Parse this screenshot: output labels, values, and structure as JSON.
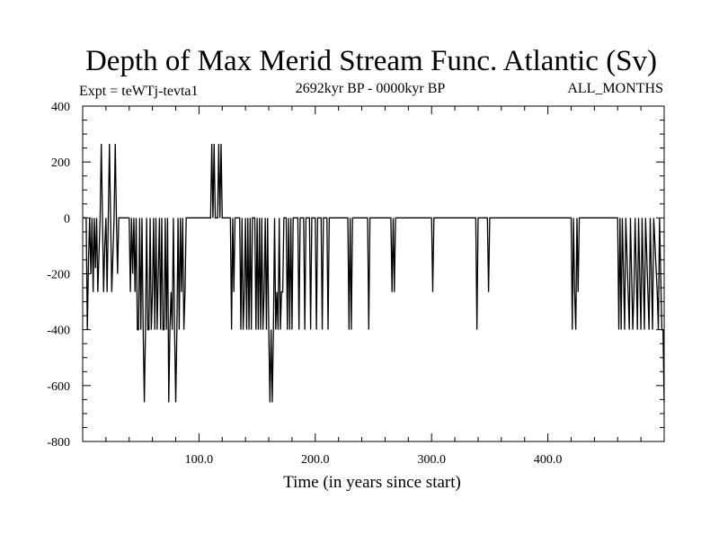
{
  "chart_data": {
    "type": "line",
    "title": "Depth of Max Merid Stream Func. Atlantic (Sv)",
    "subtitle_left": "Expt = teWTj-tevta1",
    "subtitle_center": "2692kyr BP - 0000kyr BP",
    "subtitle_right": "ALL_MONTHS",
    "xlabel": "Time (in years since start)",
    "ylabel": "",
    "xlim": [
      0,
      500
    ],
    "ylim": [
      -800,
      400
    ],
    "x_ticks": [
      100,
      200,
      300,
      400
    ],
    "x_tick_labels": [
      "100.0",
      "200.0",
      "300.0",
      "400.0"
    ],
    "y_ticks": [
      400,
      200,
      0,
      -200,
      -400,
      -600,
      -800
    ],
    "y_tick_labels": [
      "400",
      "200",
      "0",
      "-200",
      "-400",
      "-600",
      "-800"
    ],
    "grid": false,
    "legend": "none",
    "color": "#000000",
    "series": [
      {
        "points": [
          [
            0,
            0
          ],
          [
            3,
            0
          ],
          [
            4,
            -400
          ],
          [
            5,
            -150
          ],
          [
            6,
            0
          ],
          [
            7,
            -200
          ],
          [
            8,
            0
          ],
          [
            9,
            -265
          ],
          [
            10,
            0
          ],
          [
            11,
            -180
          ],
          [
            12,
            0
          ],
          [
            13,
            -265
          ],
          [
            14,
            -130
          ],
          [
            15,
            0
          ],
          [
            16,
            265
          ],
          [
            17,
            0
          ],
          [
            18,
            -265
          ],
          [
            19,
            -100
          ],
          [
            20,
            0
          ],
          [
            21,
            -265
          ],
          [
            22,
            0
          ],
          [
            23,
            265
          ],
          [
            24,
            0
          ],
          [
            25,
            -265
          ],
          [
            26,
            -130
          ],
          [
            27,
            0
          ],
          [
            28,
            265
          ],
          [
            29,
            0
          ],
          [
            30,
            -200
          ],
          [
            31,
            0
          ],
          [
            33,
            0
          ],
          [
            40,
            0
          ],
          [
            41,
            -265
          ],
          [
            42,
            0
          ],
          [
            43,
            -200
          ],
          [
            44,
            0
          ],
          [
            45,
            -265
          ],
          [
            46,
            0
          ],
          [
            47,
            -400
          ],
          [
            48,
            -400
          ],
          [
            49,
            0
          ],
          [
            50,
            -400
          ],
          [
            51,
            0
          ],
          [
            52,
            -400
          ],
          [
            53,
            -660
          ],
          [
            54,
            -400
          ],
          [
            55,
            0
          ],
          [
            56,
            -400
          ],
          [
            57,
            -400
          ],
          [
            58,
            0
          ],
          [
            59,
            -400
          ],
          [
            60,
            -265
          ],
          [
            61,
            0
          ],
          [
            62,
            -400
          ],
          [
            63,
            0
          ],
          [
            64,
            -400
          ],
          [
            65,
            -200
          ],
          [
            66,
            0
          ],
          [
            67,
            -400
          ],
          [
            68,
            0
          ],
          [
            69,
            -400
          ],
          [
            70,
            -400
          ],
          [
            71,
            0
          ],
          [
            72,
            -400
          ],
          [
            73,
            0
          ],
          [
            74,
            -660
          ],
          [
            75,
            -400
          ],
          [
            76,
            -265
          ],
          [
            77,
            -400
          ],
          [
            78,
            0
          ],
          [
            79,
            -400
          ],
          [
            80,
            -660
          ],
          [
            81,
            -400
          ],
          [
            82,
            0
          ],
          [
            83,
            -400
          ],
          [
            84,
            0
          ],
          [
            85,
            -265
          ],
          [
            86,
            0
          ],
          [
            87,
            -400
          ],
          [
            88,
            -265
          ],
          [
            89,
            0
          ],
          [
            90,
            0
          ],
          [
            110,
            0
          ],
          [
            111,
            265
          ],
          [
            112,
            0
          ],
          [
            113,
            265
          ],
          [
            114,
            0
          ],
          [
            116,
            0
          ],
          [
            117,
            265
          ],
          [
            118,
            0
          ],
          [
            119,
            265
          ],
          [
            120,
            0
          ],
          [
            127,
            0
          ],
          [
            128,
            -400
          ],
          [
            129,
            0
          ],
          [
            130,
            -265
          ],
          [
            131,
            0
          ],
          [
            135,
            0
          ],
          [
            136,
            -400
          ],
          [
            137,
            0
          ],
          [
            138,
            -400
          ],
          [
            139,
            -265
          ],
          [
            140,
            0
          ],
          [
            141,
            -400
          ],
          [
            142,
            0
          ],
          [
            143,
            -400
          ],
          [
            144,
            0
          ],
          [
            145,
            -400
          ],
          [
            146,
            0
          ],
          [
            148,
            0
          ],
          [
            149,
            -400
          ],
          [
            150,
            0
          ],
          [
            151,
            -400
          ],
          [
            152,
            0
          ],
          [
            153,
            -400
          ],
          [
            154,
            0
          ],
          [
            155,
            -400
          ],
          [
            156,
            -265
          ],
          [
            157,
            0
          ],
          [
            158,
            -400
          ],
          [
            159,
            0
          ],
          [
            160,
            -400
          ],
          [
            161,
            -660
          ],
          [
            162,
            -400
          ],
          [
            163,
            -660
          ],
          [
            164,
            -400
          ],
          [
            165,
            0
          ],
          [
            166,
            -400
          ],
          [
            167,
            -265
          ],
          [
            168,
            -400
          ],
          [
            169,
            0
          ],
          [
            170,
            -400
          ],
          [
            171,
            -265
          ],
          [
            172,
            -265
          ],
          [
            173,
            0
          ],
          [
            175,
            0
          ],
          [
            176,
            -400
          ],
          [
            177,
            0
          ],
          [
            178,
            -400
          ],
          [
            179,
            0
          ],
          [
            180,
            -400
          ],
          [
            181,
            0
          ],
          [
            185,
            0
          ],
          [
            186,
            -400
          ],
          [
            187,
            0
          ],
          [
            190,
            0
          ],
          [
            191,
            -400
          ],
          [
            192,
            0
          ],
          [
            195,
            0
          ],
          [
            196,
            -400
          ],
          [
            197,
            0
          ],
          [
            200,
            0
          ],
          [
            201,
            -400
          ],
          [
            202,
            0
          ],
          [
            205,
            0
          ],
          [
            206,
            -400
          ],
          [
            207,
            0
          ],
          [
            210,
            0
          ],
          [
            211,
            -400
          ],
          [
            212,
            0
          ],
          [
            228,
            0
          ],
          [
            229,
            -400
          ],
          [
            230,
            0
          ],
          [
            231,
            -400
          ],
          [
            232,
            0
          ],
          [
            245,
            0
          ],
          [
            246,
            -400
          ],
          [
            247,
            0
          ],
          [
            265,
            0
          ],
          [
            266,
            -265
          ],
          [
            267,
            0
          ],
          [
            268,
            -265
          ],
          [
            269,
            0
          ],
          [
            300,
            0
          ],
          [
            301,
            -265
          ],
          [
            302,
            0
          ],
          [
            338,
            0
          ],
          [
            339,
            -400
          ],
          [
            340,
            0
          ],
          [
            348,
            0
          ],
          [
            349,
            -265
          ],
          [
            350,
            0
          ],
          [
            420,
            0
          ],
          [
            421,
            -400
          ],
          [
            422,
            0
          ],
          [
            423,
            -265
          ],
          [
            424,
            -400
          ],
          [
            425,
            0
          ],
          [
            426,
            -265
          ],
          [
            427,
            0
          ],
          [
            460,
            0
          ],
          [
            461,
            -400
          ],
          [
            462,
            0
          ],
          [
            463,
            -400
          ],
          [
            464,
            0
          ],
          [
            466,
            -400
          ],
          [
            467,
            0
          ],
          [
            469,
            -265
          ],
          [
            470,
            -400
          ],
          [
            471,
            0
          ],
          [
            473,
            -400
          ],
          [
            474,
            -265
          ],
          [
            475,
            0
          ],
          [
            477,
            -400
          ],
          [
            478,
            0
          ],
          [
            480,
            -400
          ],
          [
            481,
            0
          ],
          [
            483,
            -400
          ],
          [
            484,
            0
          ],
          [
            486,
            -265
          ],
          [
            487,
            -400
          ],
          [
            488,
            0
          ],
          [
            490,
            -400
          ],
          [
            491,
            0
          ],
          [
            494,
            -265
          ],
          [
            495,
            -400
          ],
          [
            496,
            0
          ],
          [
            498,
            -400
          ],
          [
            499,
            -400
          ],
          [
            500,
            -660
          ]
        ]
      }
    ]
  }
}
